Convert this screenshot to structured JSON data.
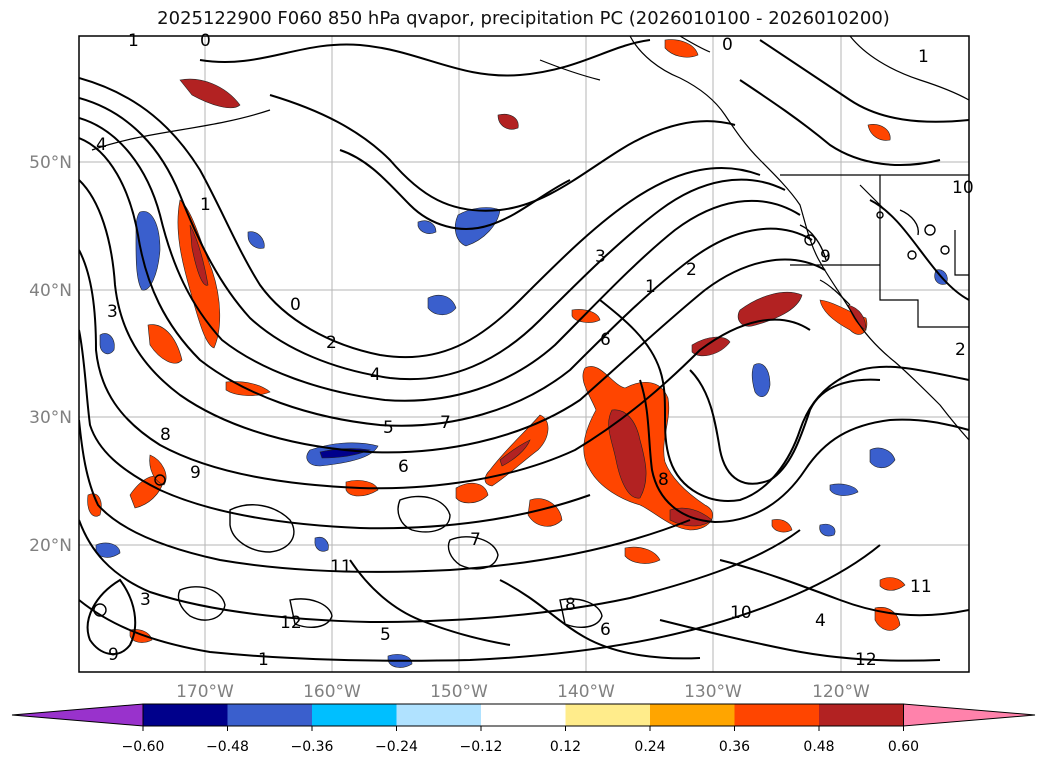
{
  "title": "2025122900 F060 850 hPa qvapor, precipitation PC (2026010100 - 2026010200)",
  "map": {
    "lat_labels": [
      "50°N",
      "40°N",
      "30°N",
      "20°N"
    ],
    "lon_labels": [
      "170°W",
      "160°W",
      "150°W",
      "140°W",
      "130°W",
      "120°W"
    ],
    "contour_labels": [
      "1",
      "0",
      "0",
      "1",
      "4",
      "1",
      "3",
      "0",
      "2",
      "4",
      "5",
      "6",
      "7",
      "8",
      "9",
      "3",
      "2",
      "1",
      "6",
      "8",
      "9",
      "10",
      "11",
      "12",
      "9",
      "8",
      "7",
      "6",
      "10",
      "11",
      "12",
      "5",
      "4",
      "3",
      "2",
      "1"
    ]
  },
  "colorbar": {
    "ticks": [
      "−0.60",
      "−0.48",
      "−0.36",
      "−0.24",
      "−0.12",
      "0.12",
      "0.24",
      "0.36",
      "0.48",
      "0.60"
    ],
    "colors": [
      "#9932cc",
      "#00008b",
      "#3a5fcd",
      "#00bfff",
      "#b0e2ff",
      "#ffffff",
      "#ffec8b",
      "#ffa500",
      "#ff4500",
      "#b22222",
      "#ff82ab"
    ]
  }
}
